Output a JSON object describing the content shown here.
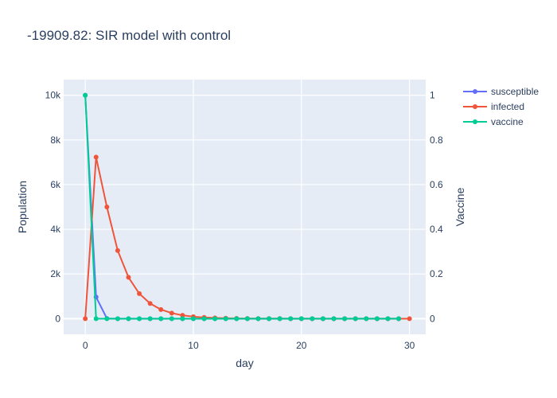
{
  "chart_data": {
    "type": "line",
    "title": "-19909.82: SIR model with control",
    "xlabel": "day",
    "ylabel": "Population",
    "y2label": "Vaccine",
    "xlim": [
      -2,
      31.5
    ],
    "ylim": [
      -700,
      10700
    ],
    "y2lim": [
      -0.07,
      1.07
    ],
    "x_ticks": [
      0,
      10,
      20,
      30
    ],
    "y_ticks": [
      0,
      2000,
      4000,
      6000,
      8000,
      10000
    ],
    "y_tick_labels": [
      "0",
      "2k",
      "4k",
      "6k",
      "8k",
      "10k"
    ],
    "y2_ticks": [
      0,
      0.2,
      0.4,
      0.6,
      0.8,
      1
    ],
    "y2_tick_labels": [
      "0",
      "0.2",
      "0.4",
      "0.6",
      "0.8",
      "1"
    ],
    "grid": true,
    "legend_position": "top-right",
    "series": [
      {
        "name": "susceptible",
        "color": "#636efa",
        "axis": "y",
        "x": [
          0,
          1,
          2,
          3,
          4,
          5,
          6,
          7,
          8,
          9,
          10,
          11,
          12,
          13,
          14,
          15,
          16,
          17,
          18,
          19,
          20,
          21,
          22,
          23,
          24,
          25,
          26,
          27,
          28,
          29
        ],
        "values": [
          10000,
          970,
          10,
          0,
          0,
          0,
          0,
          0,
          0,
          0,
          0,
          0,
          0,
          0,
          0,
          0,
          0,
          0,
          0,
          0,
          0,
          0,
          0,
          0,
          0,
          0,
          0,
          0,
          0,
          0
        ]
      },
      {
        "name": "infected",
        "color": "#ef553b",
        "axis": "y",
        "x": [
          0,
          1,
          2,
          3,
          4,
          5,
          6,
          7,
          8,
          9,
          10,
          11,
          12,
          13,
          14,
          15,
          16,
          17,
          18,
          19,
          20,
          21,
          22,
          23,
          24,
          25,
          26,
          27,
          28,
          29,
          30
        ],
        "values": [
          0,
          7230,
          5000,
          3050,
          1850,
          1120,
          680,
          410,
          250,
          150,
          90,
          55,
          33,
          20,
          12,
          7,
          4,
          3,
          2,
          1,
          1,
          0,
          0,
          0,
          0,
          0,
          0,
          0,
          0,
          0,
          0
        ]
      },
      {
        "name": "vaccine",
        "color": "#00cc96",
        "axis": "y2",
        "x": [
          0,
          1,
          2,
          3,
          4,
          5,
          6,
          7,
          8,
          9,
          10,
          11,
          12,
          13,
          14,
          15,
          16,
          17,
          18,
          19,
          20,
          21,
          22,
          23,
          24,
          25,
          26,
          27,
          28,
          29
        ],
        "values": [
          1,
          0,
          0,
          0,
          0,
          0,
          0,
          0,
          0,
          0,
          0,
          0,
          0,
          0,
          0,
          0,
          0,
          0,
          0,
          0,
          0,
          0,
          0,
          0,
          0,
          0,
          0,
          0,
          0,
          0
        ]
      }
    ]
  }
}
